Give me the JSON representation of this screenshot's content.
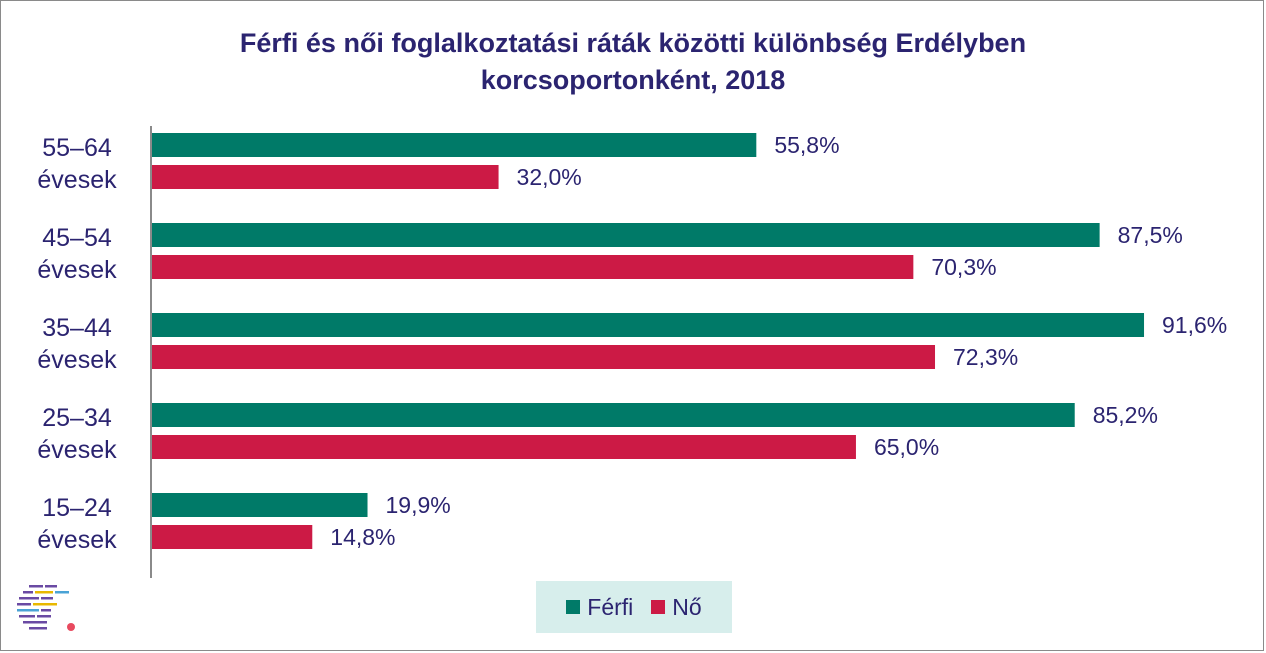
{
  "chart_data": {
    "type": "bar",
    "orientation": "horizontal",
    "title": "Férfi és női foglalkoztatási ráták közötti különbség Erdélyben korcsoportonként, 2018",
    "title_lines": [
      "Férfi és női foglalkoztatási ráták közötti különbség Erdélyben",
      "korcsoportonként, 2018"
    ],
    "categories": [
      {
        "line1": "55–64",
        "line2": "évesek"
      },
      {
        "line1": "45–54",
        "line2": "évesek"
      },
      {
        "line1": "35–44",
        "line2": "évesek"
      },
      {
        "line1": "25–34",
        "line2": "évesek"
      },
      {
        "line1": "15–24",
        "line2": "évesek"
      }
    ],
    "series": [
      {
        "name": "Férfi",
        "color": "#007a68",
        "values": [
          55.8,
          87.5,
          91.6,
          85.2,
          19.9
        ],
        "labels": [
          "55,8%",
          "87,5%",
          "91,6%",
          "85,2%",
          "19,9%"
        ]
      },
      {
        "name": "Nő",
        "color": "#cc1a45",
        "values": [
          32.0,
          70.3,
          72.3,
          65.0,
          14.8
        ],
        "labels": [
          "32,0%",
          "70,3%",
          "72,3%",
          "65,0%",
          "14,8%"
        ]
      }
    ],
    "xlim": [
      0,
      100
    ],
    "grid": false,
    "legend_position": "bottom"
  },
  "legend": {
    "male_label": "Férfi",
    "female_label": "Nő",
    "male_color": "#007a68",
    "female_color": "#cc1a45"
  },
  "logo": {
    "icon": "institute-logo-icon"
  }
}
